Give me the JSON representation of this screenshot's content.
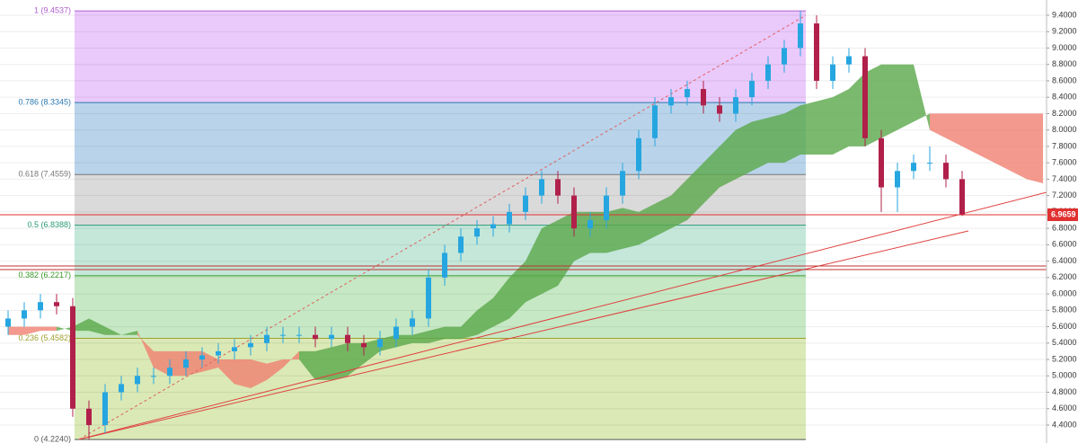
{
  "chart_data": {
    "type": "candlestick",
    "ylim": [
      4.181,
      9.586
    ],
    "yticks": [
      {
        "value": 4.4,
        "label": "4.4000"
      },
      {
        "value": 4.6,
        "label": "4.6000"
      },
      {
        "value": 4.8,
        "label": "4.8000"
      },
      {
        "value": 5.0,
        "label": "5.0000"
      },
      {
        "value": 5.2,
        "label": "5.2000"
      },
      {
        "value": 5.4,
        "label": "5.4000"
      },
      {
        "value": 5.6,
        "label": "5.6000"
      },
      {
        "value": 5.8,
        "label": "5.8000"
      },
      {
        "value": 6.0,
        "label": "6.0000"
      },
      {
        "value": 6.2,
        "label": "6.2000"
      },
      {
        "value": 6.4,
        "label": "6.4000"
      },
      {
        "value": 6.6,
        "label": "6.6000"
      },
      {
        "value": 6.8,
        "label": "6.8000"
      },
      {
        "value": 7.0,
        "label": "7.0000"
      },
      {
        "value": 7.2,
        "label": "7.2000"
      },
      {
        "value": 7.4,
        "label": "7.4000"
      },
      {
        "value": 7.6,
        "label": "7.6000"
      },
      {
        "value": 7.8,
        "label": "7.8000"
      },
      {
        "value": 8.0,
        "label": "8.0000"
      },
      {
        "value": 8.2,
        "label": "8.2000"
      },
      {
        "value": 8.4,
        "label": "8.4000"
      },
      {
        "value": 8.6,
        "label": "8.6000"
      },
      {
        "value": 8.8,
        "label": "8.8000"
      },
      {
        "value": 9.0,
        "label": "9.0000"
      },
      {
        "value": 9.2,
        "label": "9.2000"
      },
      {
        "value": 9.4,
        "label": "9.4000"
      }
    ],
    "grid": true,
    "up_color": "#26a6e0",
    "down_color": "#b0204a",
    "open": [
      5.6,
      5.7,
      5.8,
      5.9,
      5.85,
      4.6,
      4.4,
      4.8,
      4.9,
      5.0,
      5.0,
      5.1,
      5.2,
      5.25,
      5.3,
      5.35,
      5.4,
      5.5,
      5.5,
      5.5,
      5.45,
      5.5,
      5.4,
      5.35,
      5.45,
      5.6,
      5.7,
      6.2,
      6.5,
      6.7,
      6.8,
      6.85,
      7.0,
      7.2,
      7.4,
      7.2,
      6.8,
      6.9,
      7.2,
      7.5,
      7.9,
      8.3,
      8.4,
      8.5,
      8.3,
      8.2,
      8.4,
      8.6,
      8.8,
      9.0,
      9.3,
      8.6,
      8.8,
      8.9,
      7.9,
      7.3,
      7.5,
      7.6,
      7.6,
      7.4
    ],
    "high": [
      5.8,
      5.9,
      6.0,
      6.0,
      5.95,
      4.7,
      4.9,
      5.0,
      5.1,
      5.1,
      5.2,
      5.3,
      5.35,
      5.4,
      5.45,
      5.5,
      5.6,
      5.6,
      5.6,
      5.6,
      5.6,
      5.6,
      5.5,
      5.55,
      5.7,
      5.8,
      6.3,
      6.6,
      6.8,
      6.9,
      6.95,
      7.1,
      7.3,
      7.5,
      7.5,
      7.3,
      7.0,
      7.3,
      7.6,
      8.0,
      8.4,
      8.5,
      8.6,
      8.6,
      8.4,
      8.5,
      8.7,
      8.9,
      9.1,
      9.45,
      9.4,
      8.9,
      9.0,
      9.0,
      8.0,
      7.6,
      7.7,
      7.8,
      7.7,
      7.5
    ],
    "low": [
      5.5,
      5.6,
      5.7,
      5.75,
      4.5,
      4.224,
      4.3,
      4.7,
      4.8,
      4.9,
      4.9,
      5.0,
      5.1,
      5.15,
      5.2,
      5.25,
      5.3,
      5.4,
      5.4,
      5.35,
      5.35,
      5.3,
      5.25,
      5.25,
      5.35,
      5.5,
      5.6,
      6.1,
      6.4,
      6.6,
      6.7,
      6.75,
      6.9,
      7.1,
      7.1,
      6.7,
      6.7,
      6.8,
      7.1,
      7.4,
      7.8,
      8.2,
      8.3,
      8.2,
      8.1,
      8.1,
      8.3,
      8.5,
      8.7,
      8.9,
      8.5,
      8.5,
      8.7,
      7.8,
      7.0,
      7.0,
      7.4,
      7.5,
      7.3,
      6.95
    ],
    "close": [
      5.7,
      5.8,
      5.9,
      5.85,
      4.6,
      4.4,
      4.8,
      4.9,
      5.0,
      5.0,
      5.1,
      5.2,
      5.25,
      5.3,
      5.35,
      5.4,
      5.5,
      5.5,
      5.5,
      5.45,
      5.5,
      5.4,
      5.35,
      5.45,
      5.6,
      5.7,
      6.2,
      6.5,
      6.7,
      6.8,
      6.85,
      7.0,
      7.2,
      7.4,
      7.2,
      6.8,
      6.9,
      7.2,
      7.5,
      7.9,
      8.3,
      8.4,
      8.5,
      8.3,
      8.2,
      8.4,
      8.6,
      8.8,
      9.0,
      9.3,
      8.6,
      8.8,
      8.9,
      7.9,
      7.3,
      7.5,
      7.6,
      7.6,
      7.4,
      6.97
    ],
    "cloud": {
      "bull_color": "#5aa84a",
      "bear_color": "#f08070",
      "span_a": [
        5.5,
        5.5,
        5.55,
        5.55,
        5.6,
        5.7,
        5.6,
        5.5,
        5.55,
        5.1,
        5.0,
        5.0,
        5.05,
        5.1,
        4.9,
        4.85,
        4.95,
        5.1,
        5.3,
        5.3,
        5.35,
        5.4,
        5.4,
        5.45,
        5.5,
        5.5,
        5.55,
        5.6,
        5.6,
        5.8,
        5.95,
        6.2,
        6.4,
        6.8,
        6.9,
        7.0,
        7.0,
        7.0,
        7.05,
        7.0,
        7.1,
        7.2,
        7.4,
        7.6,
        7.8,
        8.0,
        8.1,
        8.15,
        8.2,
        8.3,
        8.35,
        8.4,
        8.5,
        8.7,
        8.8,
        8.8,
        8.8,
        8.0,
        7.9,
        7.8,
        7.7,
        7.6,
        7.5,
        7.4,
        7.35
      ],
      "span_b": [
        5.6,
        5.6,
        5.6,
        5.6,
        5.55,
        5.55,
        5.5,
        5.5,
        5.5,
        5.3,
        5.3,
        5.3,
        5.3,
        5.2,
        5.2,
        5.2,
        5.15,
        5.2,
        5.2,
        4.95,
        4.95,
        5.0,
        5.15,
        5.3,
        5.35,
        5.4,
        5.4,
        5.45,
        5.45,
        5.5,
        5.6,
        5.7,
        5.9,
        6.0,
        6.1,
        6.4,
        6.5,
        6.5,
        6.55,
        6.6,
        6.7,
        6.8,
        6.9,
        7.1,
        7.3,
        7.4,
        7.5,
        7.6,
        7.6,
        7.7,
        7.7,
        7.7,
        7.8,
        7.8,
        7.9,
        8.0,
        8.1,
        8.2,
        8.2,
        8.2,
        8.2,
        8.2,
        8.2,
        8.2,
        8.2
      ]
    },
    "fib_levels": [
      {
        "label": "1 (9.4537)",
        "value": 9.4537,
        "color": "#b060d0",
        "fill": "#eac9fb"
      },
      {
        "label": "0.786 (8.3345)",
        "value": 8.3345,
        "color": "#2a78b0",
        "fill": "#b9d4ea"
      },
      {
        "label": "0.618 (7.4559)",
        "value": 7.4559,
        "color": "#777777",
        "fill": "#dadada"
      },
      {
        "label": "0.5 (6.8388)",
        "value": 6.8388,
        "color": "#2a9a78",
        "fill": "#c4e7da"
      },
      {
        "label": "0.382 (6.2217)",
        "value": 6.2217,
        "color": "#3a9a2a",
        "fill": "#c6e8c4"
      },
      {
        "label": "0.236 (5.4582)",
        "value": 5.4582,
        "color": "#a0a030",
        "fill": "#dae9b6"
      },
      {
        "label": "0 (4.2240)",
        "value": 4.224,
        "color": "#555555"
      }
    ],
    "last_price": {
      "value": 6.9659,
      "label": "6.9659",
      "color": "#e03030"
    }
  }
}
